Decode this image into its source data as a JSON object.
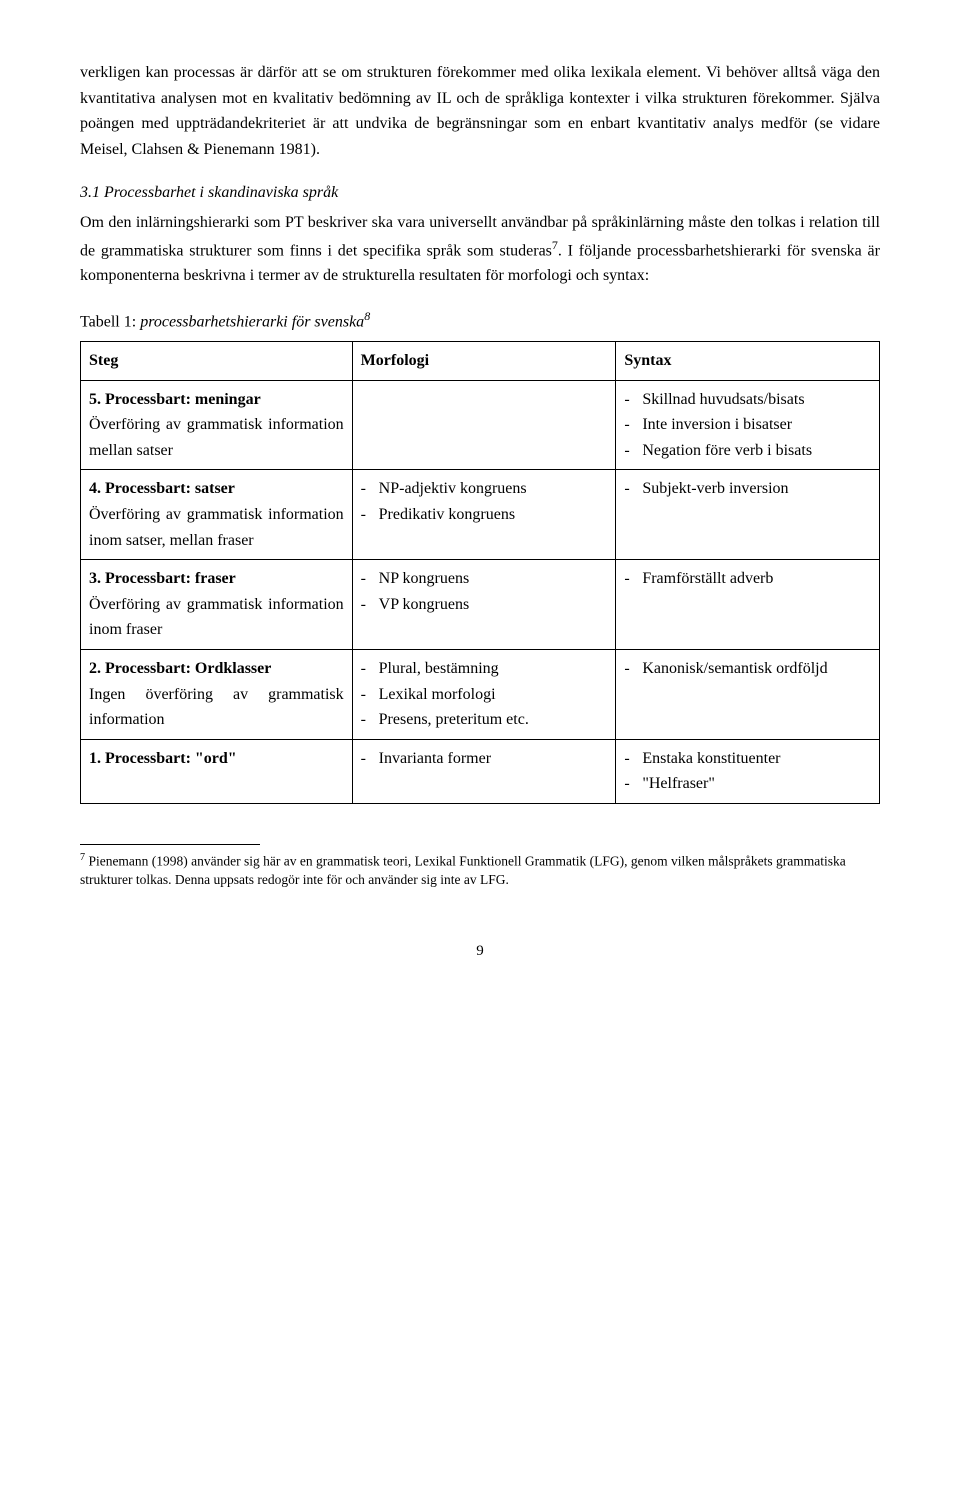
{
  "paragraphs": {
    "p1": "verkligen kan processas är därför att se om strukturen förekommer med olika lexikala element. Vi behöver alltså väga den kvantitativa analysen mot en kvalitativ bedömning av IL och de språkliga kontexter i vilka strukturen förekommer. Själva poängen med uppträdandekriteriet är att undvika de begränsningar som en enbart kvantitativ analys medför (se vidare Meisel, Clahsen & Pienemann 1981).",
    "section_heading": "3.1 Processbarhet i skandinaviska språk",
    "p2a": "Om den inlärningshierarki som PT beskriver ska vara universellt användbar på språkinlärning måste den tolkas i relation till de grammatiska strukturer som finns i det specifika språk som studeras",
    "p2_sup": "7",
    "p2b": ". I följande processbarhetshierarki för svenska är komponenterna beskrivna i termer av de strukturella resultaten för morfologi och syntax:"
  },
  "table_caption_prefix": "Tabell 1: ",
  "table_caption_italic": "processbarhetshierarki för svenska",
  "table_caption_sup": "8",
  "table": {
    "headers": {
      "c1": "Steg",
      "c2": "Morfologi",
      "c3": "Syntax"
    },
    "rows": [
      {
        "steg_bold": "5. Processbart: meningar",
        "steg_rest": "Överföring av grammatisk information mellan satser",
        "morf": [],
        "synt": [
          "Skillnad huvudsats/bisats",
          "Inte inversion i bisatser",
          "Negation före verb i bisats"
        ]
      },
      {
        "steg_bold": "4. Processbart: satser",
        "steg_rest": "Överföring av grammatisk information inom satser, mellan fraser",
        "morf": [
          "NP-adjektiv kongruens",
          "Predikativ kongruens"
        ],
        "synt": [
          "Subjekt-verb inversion"
        ]
      },
      {
        "steg_bold": "3. Processbart: fraser",
        "steg_rest": "Överföring av grammatisk information inom fraser",
        "morf": [
          "NP kongruens",
          "VP kongruens"
        ],
        "synt": [
          "Framförställt adverb"
        ]
      },
      {
        "steg_bold": "2. Processbart: Ordklasser",
        "steg_rest": "Ingen överföring av grammatisk information",
        "morf": [
          "Plural, bestämning",
          "Lexikal morfologi",
          "Presens, preteritum etc."
        ],
        "synt": [
          "Kanonisk/semantisk ordföljd"
        ]
      },
      {
        "steg_bold": "1. Processbart: \"ord\"",
        "steg_rest": "",
        "morf": [
          "Invarianta former"
        ],
        "synt": [
          "Enstaka konstituenter",
          "\"Helfraser\""
        ]
      }
    ]
  },
  "footnote": {
    "sup": "7",
    "text": " Pienemann (1998) använder sig här av en grammatisk teori, Lexikal Funktionell Grammatik (LFG), genom vilken målspråkets grammatiska strukturer tolkas. Denna uppsats redogör inte för och använder sig inte av LFG."
  },
  "page_number": "9"
}
